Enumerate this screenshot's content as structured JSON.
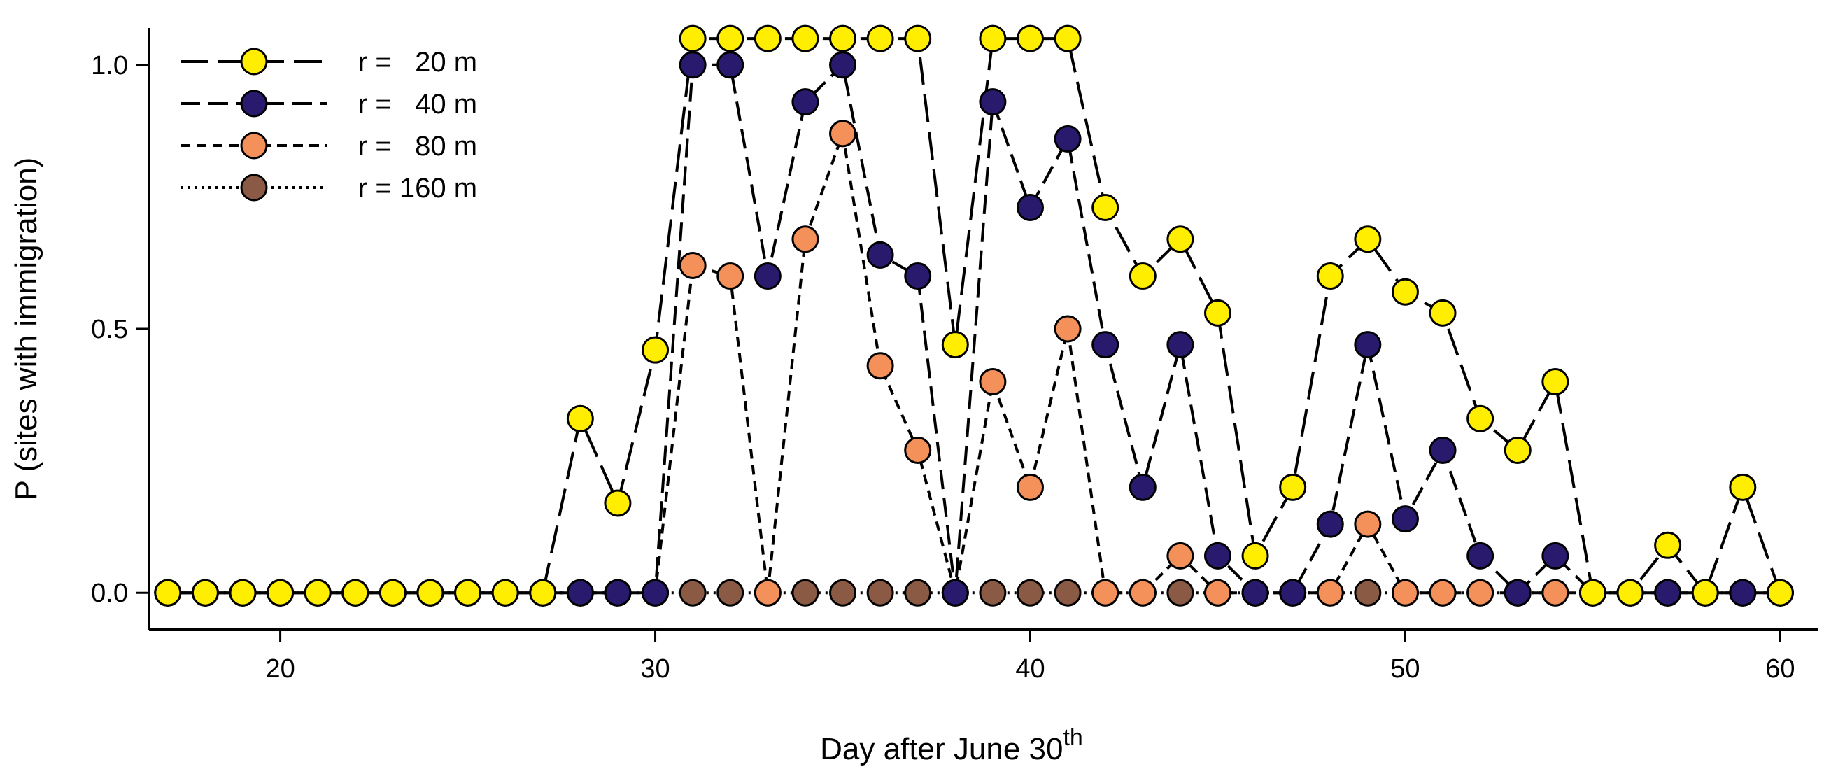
{
  "chart_data": {
    "type": "line",
    "title": "",
    "xlabel": "Day after June 30",
    "xlabel_superscript": "th",
    "ylabel": "P (sites with immigration)",
    "xlim": [
      16.5,
      61
    ],
    "ylim": [
      -0.07,
      1.07
    ],
    "xticks": [
      20,
      30,
      40,
      50,
      60
    ],
    "yticks": [
      0.0,
      0.5,
      1.0
    ],
    "ytick_labels": [
      "0.0",
      "0.5",
      "1.0"
    ],
    "grid": false,
    "legend_position": "top-left",
    "x": [
      17,
      18,
      19,
      20,
      21,
      22,
      23,
      24,
      25,
      26,
      27,
      28,
      29,
      30,
      31,
      32,
      33,
      34,
      35,
      36,
      37,
      38,
      39,
      40,
      41,
      42,
      43,
      44,
      45,
      46,
      47,
      48,
      49,
      50,
      51,
      52,
      53,
      54,
      55,
      56,
      57,
      58,
      59,
      60
    ],
    "series": [
      {
        "name": "r =   20 m",
        "color": "#ffee00",
        "dash": "long",
        "values": [
          0,
          0,
          0,
          0,
          0,
          0,
          0,
          0,
          0,
          0,
          0,
          0.33,
          0.17,
          0.46,
          1.05,
          1.05,
          1.05,
          1.05,
          1.05,
          1.05,
          1.05,
          0.47,
          1.05,
          1.05,
          1.05,
          0.73,
          0.6,
          0.67,
          0.53,
          0.07,
          0.2,
          0.6,
          0.67,
          0.57,
          0.53,
          0.33,
          0.27,
          0.4,
          0,
          0,
          0.09,
          0,
          0.2,
          0
        ]
      },
      {
        "name": "r =   40 m",
        "color": "#2a1a6e",
        "dash": "medium",
        "values": [
          0,
          0,
          0,
          0,
          0,
          0,
          0,
          0,
          0,
          0,
          0,
          0,
          0,
          0,
          1.0,
          1.0,
          0.6,
          0.93,
          1.0,
          0.64,
          0.6,
          0,
          0.93,
          0.73,
          0.86,
          0.47,
          0.2,
          0.47,
          0.07,
          0,
          0,
          0.13,
          0.47,
          0.14,
          0.27,
          0.07,
          0,
          0.07,
          0,
          0,
          0,
          0,
          0,
          0
        ]
      },
      {
        "name": "r =   80 m",
        "color": "#f4905a",
        "dash": "short",
        "values": [
          0,
          0,
          0,
          0,
          0,
          0,
          0,
          0,
          0,
          0,
          0,
          0,
          0,
          0,
          0.62,
          0.6,
          0,
          0.67,
          0.87,
          0.43,
          0.27,
          0,
          0.4,
          0.2,
          0.5,
          0,
          0,
          0.07,
          0,
          0,
          0,
          0,
          0.13,
          0,
          0,
          0,
          0,
          0,
          0,
          0,
          0,
          0,
          0,
          0
        ]
      },
      {
        "name": "r = 160 m",
        "color": "#8a5a44",
        "dash": "dotted",
        "values": [
          0,
          0,
          0,
          0,
          0,
          0,
          0,
          0,
          0,
          0,
          0,
          0,
          0,
          0,
          0,
          0,
          0,
          0,
          0,
          0,
          0,
          0,
          0,
          0,
          0,
          0,
          0,
          0,
          0,
          0,
          0,
          0,
          0,
          0,
          0,
          0,
          0,
          0,
          0,
          0,
          0,
          0,
          0,
          0
        ]
      }
    ]
  }
}
